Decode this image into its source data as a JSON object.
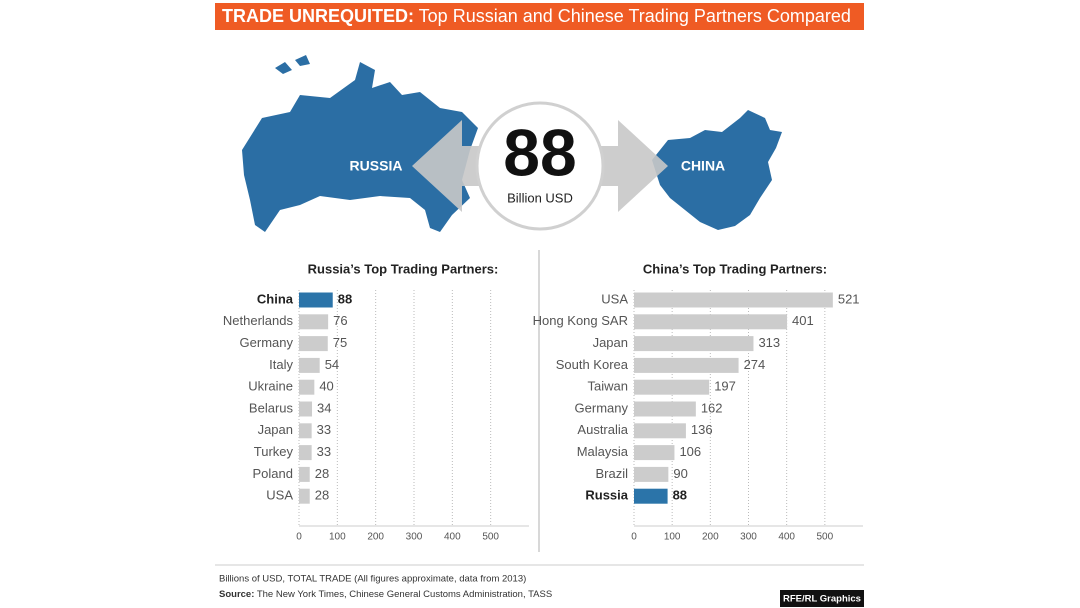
{
  "header": {
    "title_bold": "TRADE UNREQUITED:",
    "title_rest": " Top Russian and Chinese Trading Partners Compared"
  },
  "map": {
    "left_label": "RUSSIA",
    "right_label": "CHINA",
    "total": 88,
    "total_unit": "Billion USD"
  },
  "chart_data": [
    {
      "type": "bar",
      "orientation": "horizontal",
      "title": "Russia’s Top Trading Partners:",
      "categories": [
        "China",
        "Netherlands",
        "Germany",
        "Italy",
        "Ukraine",
        "Belarus",
        "Japan",
        "Turkey",
        "Poland",
        "USA"
      ],
      "values": [
        88,
        76,
        75,
        54,
        40,
        34,
        33,
        33,
        28,
        28
      ],
      "color": "#cccccc",
      "highlight_color": "#2b74a9",
      "highlight_index": 0,
      "xlim": [
        0,
        600
      ],
      "xticks": [
        0,
        100,
        200,
        300,
        400,
        500
      ],
      "grid": true
    },
    {
      "type": "bar",
      "orientation": "horizontal",
      "title": "China’s Top Trading Partners:",
      "categories": [
        "USA",
        "Hong Kong SAR",
        "Japan",
        "South Korea",
        "Taiwan",
        "Germany",
        "Australia",
        "Malaysia",
        "Brazil",
        "Russia"
      ],
      "values": [
        521,
        401,
        313,
        274,
        197,
        162,
        136,
        106,
        90,
        88
      ],
      "color": "#cccccc",
      "highlight_color": "#2b74a9",
      "highlight_index": 9,
      "xlim": [
        0,
        600
      ],
      "xticks": [
        0,
        100,
        200,
        300,
        400,
        500
      ],
      "grid": true
    }
  ],
  "footer": {
    "note": "Billions of USD, TOTAL TRADE (All figures approximate, data from 2013)",
    "source_label": "Source:",
    "source_text": " The New York Times, Chinese General Customs Administration, TASS",
    "credit": "RFE/RL Graphics"
  }
}
